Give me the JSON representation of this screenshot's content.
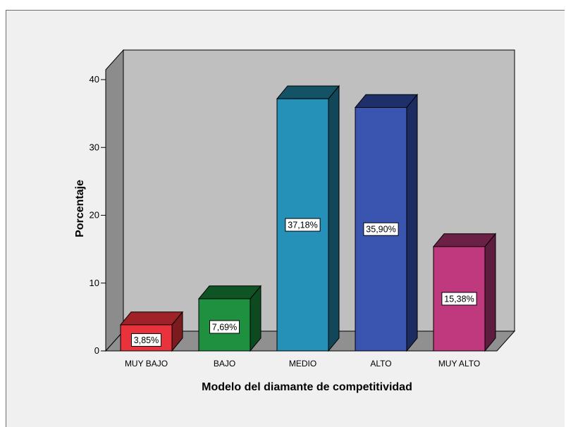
{
  "chart_data": {
    "type": "bar",
    "categories": [
      "MUY BAJO",
      "BAJO",
      "MEDIO",
      "ALTO",
      "MUY ALTO"
    ],
    "values": [
      3.85,
      7.69,
      37.18,
      35.9,
      15.38
    ],
    "data_labels": [
      "3,85%",
      "7,69%",
      "37,18%",
      "35,90%",
      "15,38%"
    ],
    "bar_colors": [
      {
        "front": "#e8323c",
        "side": "#7a1b1f",
        "top": "#9e2228"
      },
      {
        "front": "#1e9040",
        "side": "#0e4a20",
        "top": "#0f5424"
      },
      {
        "front": "#2691b8",
        "side": "#12475a",
        "top": "#145366"
      },
      {
        "front": "#3a55b0",
        "side": "#1c2b60",
        "top": "#1f2f6a"
      },
      {
        "front": "#c0397e",
        "side": "#5e1c3e",
        "top": "#6b2046"
      }
    ],
    "xlabel": "Modelo del diamante de competitividad",
    "ylabel": "Porcentaje",
    "ylim": [
      0,
      40
    ],
    "yticks": [
      "0",
      "10",
      "20",
      "30",
      "40"
    ],
    "grid": false,
    "style": "3d",
    "colors": {
      "plot_back_wall": "#bfbfbf",
      "plot_side_wall": "#8c8c8c",
      "floor": "#909090",
      "frame_background": "#f0f0f0"
    }
  }
}
